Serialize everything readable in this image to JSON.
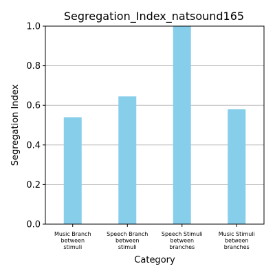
{
  "chart_data": {
    "type": "bar",
    "title": "Segregation_Index_natsound165",
    "xlabel": "Category",
    "ylabel": "Segregation Index",
    "categories": [
      [
        "Music Branch",
        "between",
        "stimuli"
      ],
      [
        "Speech Branch",
        "between",
        "stimuli"
      ],
      [
        "Speech Stimuli",
        "between",
        "branches"
      ],
      [
        "Music Stimuli",
        "between",
        "branches"
      ]
    ],
    "values": [
      0.54,
      0.645,
      1.0,
      0.58
    ],
    "ylim": [
      0,
      1.0
    ],
    "yticks": [
      "0.0",
      "0.2",
      "0.4",
      "0.6",
      "0.8",
      "1.0"
    ],
    "grid": "horizontal",
    "bar_color": "#87ceeb"
  }
}
